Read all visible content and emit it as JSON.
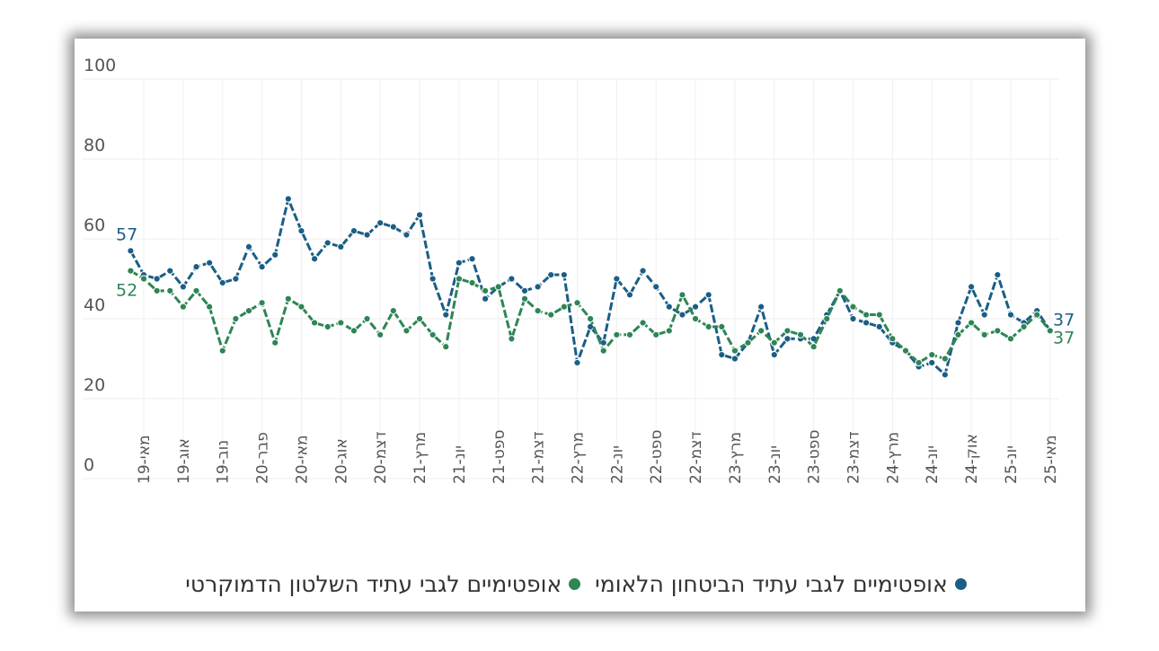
{
  "chart_data": {
    "type": "line",
    "title": "",
    "xlabel": "",
    "ylabel": "",
    "ylim": [
      0,
      100
    ],
    "yticks": [
      "0",
      "20",
      "40",
      "60",
      "80",
      "100"
    ],
    "grid": true,
    "legend_position": "bottom",
    "x_tick_labels": [
      "מאי-19",
      "אוג-19",
      "נוב-19",
      "פבר-20",
      "מאי-20",
      "אוג-20",
      "דצמ-20",
      "מרץ-21",
      "יונ-21",
      "ספט-21",
      "דצמ-21",
      "מרץ-22",
      "יונ-22",
      "ספט-22",
      "דצמ-22",
      "מרץ-23",
      "יונ-23",
      "ספט-23",
      "דצמ-23",
      "מרץ-24",
      "יונ-24",
      "אוק-24",
      "יונ-25",
      "מאי-25"
    ],
    "x_tick_every": 3,
    "x_tick_first_index": 1,
    "series": [
      {
        "name": "אופטימיים לגבי עתיד הביטחון הלאומי",
        "color": "#1a5e86",
        "start_label": "57",
        "end_label": "37",
        "values": [
          57,
          51,
          50,
          52,
          48,
          53,
          54,
          49,
          50,
          58,
          53,
          56,
          70,
          62,
          55,
          59,
          58,
          62,
          61,
          64,
          63,
          61,
          66,
          50,
          41,
          54,
          55,
          45,
          48,
          50,
          47,
          48,
          51,
          51,
          29,
          38,
          34,
          50,
          46,
          52,
          48,
          43,
          41,
          43,
          46,
          31,
          30,
          34,
          43,
          31,
          35,
          35,
          35,
          41,
          47,
          40,
          39,
          38,
          34,
          32,
          28,
          29,
          26,
          39,
          48,
          41,
          51,
          41,
          39,
          42,
          37
        ]
      },
      {
        "name": "אופטימיים לגבי עתיד השלטון הדמוקרטי",
        "color": "#2e8555",
        "start_label": "52",
        "end_label": "37",
        "values": [
          52,
          50,
          47,
          47,
          43,
          47,
          43,
          32,
          40,
          42,
          44,
          34,
          45,
          43,
          39,
          38,
          39,
          37,
          40,
          36,
          42,
          37,
          40,
          36,
          33,
          50,
          49,
          47,
          48,
          35,
          45,
          42,
          41,
          43,
          44,
          40,
          32,
          36,
          36,
          39,
          36,
          37,
          46,
          40,
          38,
          38,
          32,
          34,
          37,
          34,
          37,
          36,
          33,
          40,
          47,
          43,
          41,
          41,
          35,
          32,
          29,
          31,
          30,
          36,
          39,
          36,
          37,
          35,
          38,
          41,
          37
        ]
      }
    ]
  },
  "legend": {
    "items": [
      {
        "label": "אופטימיים לגבי עתיד הביטחון הלאומי",
        "color": "#1a5e86"
      },
      {
        "label": "אופטימיים לגבי עתיד השלטון הדמוקרטי",
        "color": "#2e8555"
      }
    ]
  }
}
